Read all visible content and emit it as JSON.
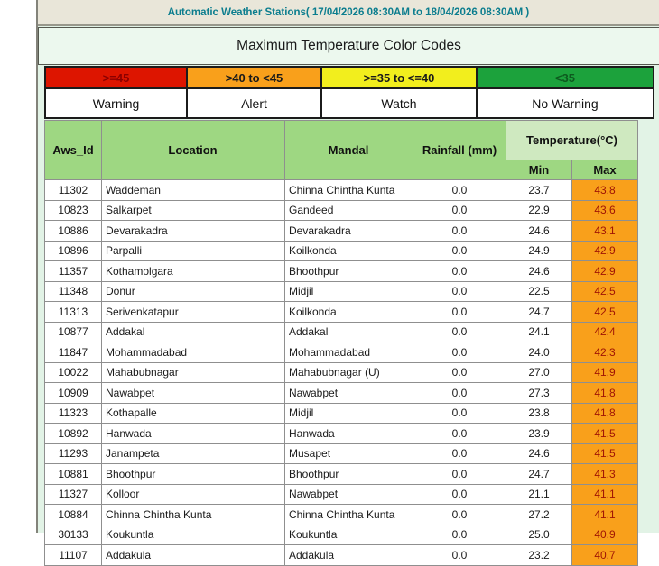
{
  "header": {
    "title": "Automatic Weather Stations( 17/04/2026 08:30AM to 18/04/2026 08:30AM )"
  },
  "subtitle": "Maximum Temperature Color Codes",
  "legend": {
    "ranges": [
      {
        "label": ">=45",
        "action": "Warning",
        "color": "#dd1500",
        "text_color": "#8b0000"
      },
      {
        "label": ">40 to <45",
        "action": "Alert",
        "color": "#f9a01b",
        "text_color": "#1a1a1a"
      },
      {
        "label": ">=35 to <=40",
        "action": "Watch",
        "color": "#f2ee1d",
        "text_color": "#1a1a1a"
      },
      {
        "label": "<35",
        "action": "No Warning",
        "color": "#1ca23c",
        "text_color": "#0d5a1e"
      }
    ]
  },
  "table": {
    "columns": [
      "Aws_Id",
      "Location",
      "Mandal",
      "Rainfall (mm)",
      "Temperature(°C)"
    ],
    "temp_subcolumns": [
      "Min",
      "Max"
    ],
    "rows": [
      {
        "aws_id": "11302",
        "location": "Waddeman",
        "mandal": "Chinna Chintha Kunta",
        "rainfall": "0.0",
        "min": "23.7",
        "max": "43.8"
      },
      {
        "aws_id": "10823",
        "location": "Salkarpet",
        "mandal": "Gandeed",
        "rainfall": "0.0",
        "min": "22.9",
        "max": "43.6"
      },
      {
        "aws_id": "10886",
        "location": "Devarakadra",
        "mandal": "Devarakadra",
        "rainfall": "0.0",
        "min": "24.6",
        "max": "43.1"
      },
      {
        "aws_id": "10896",
        "location": "Parpalli",
        "mandal": "Koilkonda",
        "rainfall": "0.0",
        "min": "24.9",
        "max": "42.9"
      },
      {
        "aws_id": "11357",
        "location": "Kothamolgara",
        "mandal": "Bhoothpur",
        "rainfall": "0.0",
        "min": "24.6",
        "max": "42.9"
      },
      {
        "aws_id": "11348",
        "location": "Donur",
        "mandal": "Midjil",
        "rainfall": "0.0",
        "min": "22.5",
        "max": "42.5"
      },
      {
        "aws_id": "11313",
        "location": "Serivenkatapur",
        "mandal": "Koilkonda",
        "rainfall": "0.0",
        "min": "24.7",
        "max": "42.5"
      },
      {
        "aws_id": "10877",
        "location": "Addakal",
        "mandal": "Addakal",
        "rainfall": "0.0",
        "min": "24.1",
        "max": "42.4"
      },
      {
        "aws_id": "11847",
        "location": "Mohammadabad",
        "mandal": "Mohammadabad",
        "rainfall": "0.0",
        "min": "24.0",
        "max": "42.3"
      },
      {
        "aws_id": "10022",
        "location": "Mahabubnagar",
        "mandal": "Mahabubnagar (U)",
        "rainfall": "0.0",
        "min": "27.0",
        "max": "41.9"
      },
      {
        "aws_id": "10909",
        "location": "Nawabpet",
        "mandal": "Nawabpet",
        "rainfall": "0.0",
        "min": "27.3",
        "max": "41.8"
      },
      {
        "aws_id": "11323",
        "location": "Kothapalle",
        "mandal": "Midjil",
        "rainfall": "0.0",
        "min": "23.8",
        "max": "41.8"
      },
      {
        "aws_id": "10892",
        "location": "Hanwada",
        "mandal": "Hanwada",
        "rainfall": "0.0",
        "min": "23.9",
        "max": "41.5"
      },
      {
        "aws_id": "11293",
        "location": "Janampeta",
        "mandal": "Musapet",
        "rainfall": "0.0",
        "min": "24.6",
        "max": "41.5"
      },
      {
        "aws_id": "10881",
        "location": "Bhoothpur",
        "mandal": "Bhoothpur",
        "rainfall": "0.0",
        "min": "24.7",
        "max": "41.3"
      },
      {
        "aws_id": "11327",
        "location": "Kolloor",
        "mandal": "Nawabpet",
        "rainfall": "0.0",
        "min": "21.1",
        "max": "41.1"
      },
      {
        "aws_id": "10884",
        "location": "Chinna Chintha Kunta",
        "mandal": "Chinna Chintha Kunta",
        "rainfall": "0.0",
        "min": "27.2",
        "max": "41.1"
      },
      {
        "aws_id": "30133",
        "location": "Koukuntla",
        "mandal": "Koukuntla",
        "rainfall": "0.0",
        "min": "25.0",
        "max": "40.9"
      },
      {
        "aws_id": "11107",
        "location": "Addakula",
        "mandal": "Addakula",
        "rainfall": "0.0",
        "min": "23.2",
        "max": "40.7"
      }
    ]
  },
  "colors": {
    "max_cell_bg": "#f9a01b",
    "max_cell_text": "#a01505",
    "header_green": "#9ed782",
    "temp_header_green": "#cfe9c0",
    "topbar_bg": "#e9e6d9",
    "topbar_text": "#0b7d8e",
    "page_bg": "#e2f3e6"
  }
}
